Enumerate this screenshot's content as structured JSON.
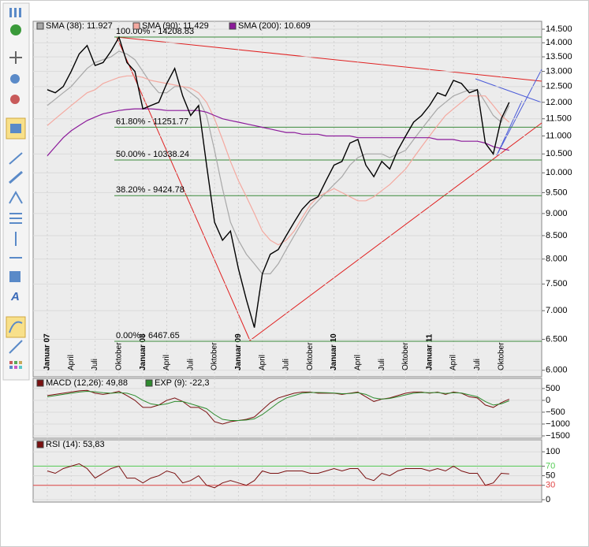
{
  "chart_data": [
    {
      "type": "line",
      "log_scale": true,
      "grid": true,
      "color": "#000000",
      "categories": [
        "Januar 07",
        null,
        null,
        "April",
        null,
        null,
        "Juli",
        null,
        null,
        "Oktober",
        null,
        null,
        "Januar 08",
        null,
        null,
        "April",
        null,
        null,
        "Juli",
        null,
        null,
        "Oktober",
        null,
        null,
        "Januar 09",
        null,
        null,
        "April",
        null,
        null,
        "Juli",
        null,
        null,
        "Oktober",
        null,
        null,
        "Januar 10",
        null,
        null,
        "April",
        null,
        null,
        "Juli",
        null,
        null,
        "Oktober",
        null,
        null,
        "Januar 11",
        null,
        null,
        "April",
        null,
        null,
        "Juli",
        null,
        null,
        "Oktober",
        null
      ],
      "values": [
        12400,
        12300,
        12500,
        13000,
        13600,
        13900,
        13200,
        13300,
        13700,
        14200,
        13300,
        13000,
        11800,
        11900,
        12000,
        12600,
        13100,
        12200,
        11600,
        11900,
        10200,
        8800,
        8400,
        8600,
        7800,
        7200,
        6700,
        7700,
        8100,
        8200,
        8500,
        8800,
        9100,
        9300,
        9400,
        9800,
        10200,
        10300,
        10800,
        10900,
        10200,
        9900,
        10300,
        10100,
        10600,
        11000,
        11400,
        11600,
        11900,
        12300,
        12200,
        12700,
        12600,
        12300,
        12400,
        10800,
        10500,
        11500,
        12000
      ],
      "series": [
        {
          "name": "SMA (38): 11.927",
          "color": "#a8a8a8",
          "values": [
            11900,
            12100,
            12300,
            12500,
            12800,
            13100,
            13300,
            13400,
            13500,
            13700,
            13600,
            13400,
            13000,
            12600,
            12300,
            12300,
            12500,
            12500,
            12300,
            12100,
            11600,
            10600,
            9600,
            8800,
            8400,
            8100,
            7900,
            7700,
            7700,
            7900,
            8200,
            8500,
            8800,
            9100,
            9300,
            9500,
            9700,
            9900,
            10200,
            10400,
            10500,
            10500,
            10500,
            10400,
            10500,
            10600,
            10900,
            11200,
            11500,
            11800,
            12000,
            12200,
            12300,
            12400,
            12400,
            12000,
            11600,
            11400,
            11900
          ]
        },
        {
          "name": "SMA (90): 11.429",
          "color": "#f4a9a0",
          "values": [
            11300,
            11500,
            11700,
            11900,
            12100,
            12300,
            12400,
            12600,
            12700,
            12800,
            12850,
            12850,
            12800,
            12700,
            12650,
            12600,
            12550,
            12500,
            12450,
            12300,
            12000,
            11500,
            10900,
            10300,
            9800,
            9400,
            9000,
            8600,
            8400,
            8300,
            8400,
            8600,
            8900,
            9200,
            9400,
            9500,
            9600,
            9500,
            9400,
            9300,
            9300,
            9400,
            9550,
            9700,
            9900,
            10100,
            10400,
            10700,
            11000,
            11300,
            11600,
            11800,
            12000,
            12200,
            12200,
            12200,
            11900,
            11600,
            11400
          ]
        },
        {
          "name": "SMA (200): 10.609",
          "color": "#8b1a9a",
          "values": [
            10450,
            10700,
            10950,
            11150,
            11300,
            11450,
            11550,
            11650,
            11700,
            11750,
            11780,
            11800,
            11800,
            11800,
            11780,
            11750,
            11750,
            11750,
            11750,
            11750,
            11700,
            11600,
            11500,
            11450,
            11400,
            11350,
            11300,
            11250,
            11200,
            11150,
            11100,
            11100,
            11050,
            11050,
            11050,
            11000,
            11000,
            11000,
            11000,
            10950,
            10950,
            10950,
            10950,
            10950,
            10950,
            10950,
            10950,
            10950,
            10950,
            10900,
            10900,
            10900,
            10850,
            10850,
            10850,
            10800,
            10700,
            10650,
            10600
          ]
        }
      ],
      "ylim": [
        5900,
        14800
      ],
      "yticks": [
        {
          "value": 6000,
          "label": "6.000"
        },
        {
          "value": 6500,
          "label": "6.500"
        },
        {
          "value": 7000,
          "label": "7.000"
        },
        {
          "value": 7500,
          "label": "7.500"
        },
        {
          "value": 8000,
          "label": "8.000"
        },
        {
          "value": 8500,
          "label": "8.500"
        },
        {
          "value": 9000,
          "label": "9.000"
        },
        {
          "value": 9500,
          "label": "9.500"
        },
        {
          "value": 10000,
          "label": "10.000"
        },
        {
          "value": 10500,
          "label": "10.500"
        },
        {
          "value": 11000,
          "label": "11.000"
        },
        {
          "value": 11500,
          "label": "11.500"
        },
        {
          "value": 12000,
          "label": "12.000"
        },
        {
          "value": 12500,
          "label": "12.500"
        },
        {
          "value": 13000,
          "label": "13.000"
        },
        {
          "value": 13500,
          "label": "13.500"
        },
        {
          "value": 14000,
          "label": "14.000"
        },
        {
          "value": 14500,
          "label": "14.500"
        }
      ],
      "level_color": "#3a8a3a",
      "levels": [
        {
          "value": 14208.83,
          "label": "100.00% - 14208.83"
        },
        {
          "value": 11251.77,
          "label": "61.80% - 11251.77"
        },
        {
          "value": 10338.24,
          "label": "50.00% - 10338.24"
        },
        {
          "value": 9424.78,
          "label": "38.20% - 9424.78"
        },
        {
          "value": 6467.65,
          "label": "0.00% - 6467.65"
        }
      ]
    },
    {
      "type": "line",
      "series": [
        {
          "name": "MACD (12,26): 49,88",
          "color": "#7a1010",
          "values": [
            200,
            250,
            300,
            350,
            400,
            420,
            300,
            250,
            300,
            380,
            200,
            0,
            -300,
            -300,
            -200,
            0,
            100,
            -50,
            -300,
            -300,
            -500,
            -900,
            -1000,
            -900,
            -850,
            -800,
            -700,
            -400,
            -100,
            100,
            200,
            300,
            350,
            350,
            300,
            300,
            300,
            250,
            300,
            350,
            150,
            -50,
            50,
            100,
            200,
            300,
            350,
            350,
            300,
            350,
            250,
            350,
            300,
            150,
            100,
            -200,
            -300,
            -100,
            50
          ]
        },
        {
          "name": "EXP (9): -22,3",
          "color": "#2e8b2e",
          "values": [
            150,
            200,
            250,
            300,
            350,
            380,
            360,
            320,
            300,
            320,
            300,
            200,
            0,
            -150,
            -200,
            -150,
            -50,
            -50,
            -150,
            -250,
            -350,
            -600,
            -800,
            -850,
            -850,
            -830,
            -780,
            -600,
            -350,
            -100,
            100,
            200,
            300,
            330,
            330,
            320,
            310,
            280,
            290,
            320,
            250,
            100,
            50,
            80,
            150,
            230,
            300,
            330,
            320,
            330,
            290,
            320,
            310,
            230,
            150,
            -50,
            -200,
            -150,
            -20
          ]
        }
      ],
      "ylim": [
        -1600,
        930
      ],
      "yticks": [
        {
          "value": -1500,
          "label": "−1500"
        },
        {
          "value": -1000,
          "label": "−1000"
        },
        {
          "value": -500,
          "label": "−500"
        },
        0,
        500
      ]
    },
    {
      "type": "line",
      "series": [
        {
          "name": "RSI (14): 53,83",
          "color": "#7a1010",
          "values": [
            60,
            55,
            65,
            70,
            75,
            65,
            45,
            55,
            65,
            70,
            45,
            45,
            35,
            45,
            50,
            60,
            55,
            35,
            40,
            50,
            30,
            25,
            35,
            40,
            35,
            30,
            40,
            60,
            55,
            55,
            60,
            60,
            60,
            55,
            55,
            60,
            65,
            60,
            65,
            65,
            45,
            40,
            55,
            50,
            60,
            65,
            65,
            65,
            60,
            65,
            60,
            70,
            60,
            55,
            55,
            30,
            35,
            55,
            53.83
          ]
        }
      ],
      "ylim": [
        -5,
        125
      ],
      "yticks": [
        0,
        30,
        50,
        70,
        100
      ],
      "ref_lines": [
        {
          "value": 70,
          "color": "#55cc55"
        },
        {
          "value": 30,
          "color": "#e04444"
        }
      ]
    }
  ]
}
